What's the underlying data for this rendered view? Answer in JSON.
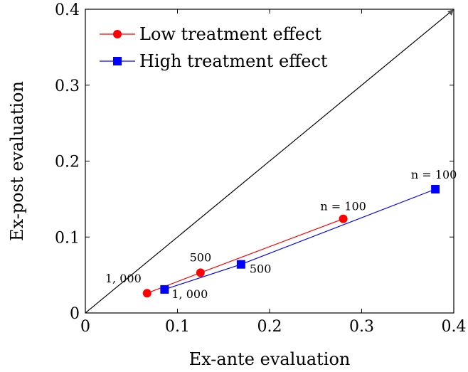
{
  "chart_data": {
    "type": "line",
    "title": "",
    "xlabel": "Ex-ante evaluation",
    "ylabel": "Ex-post evaluation",
    "xlim": [
      0,
      0.4
    ],
    "ylim": [
      0,
      0.4
    ],
    "xticks": [
      "0",
      "0.1",
      "0.2",
      "0.3",
      "0.4"
    ],
    "yticks": [
      "0",
      "0.1",
      "0.2",
      "0.3",
      "0.4"
    ],
    "grid": false,
    "legend_position": "top-left",
    "diagonal_reference": [
      [
        0,
        0
      ],
      [
        0.4,
        0.4
      ]
    ],
    "series": [
      {
        "name": "Low treatment effect",
        "color": "#ff0000",
        "marker": "circle",
        "points": [
          {
            "x": 0.067,
            "y": 0.026,
            "label": "1, 000"
          },
          {
            "x": 0.125,
            "y": 0.053,
            "label": "500"
          },
          {
            "x": 0.28,
            "y": 0.124,
            "label": "n = 100"
          }
        ]
      },
      {
        "name": "High treatment effect",
        "color": "#0000ff",
        "marker": "square",
        "points": [
          {
            "x": 0.086,
            "y": 0.031,
            "label": "1, 000"
          },
          {
            "x": 0.169,
            "y": 0.064,
            "label": "500"
          },
          {
            "x": 0.38,
            "y": 0.163,
            "label": "n = 100"
          }
        ]
      }
    ]
  }
}
